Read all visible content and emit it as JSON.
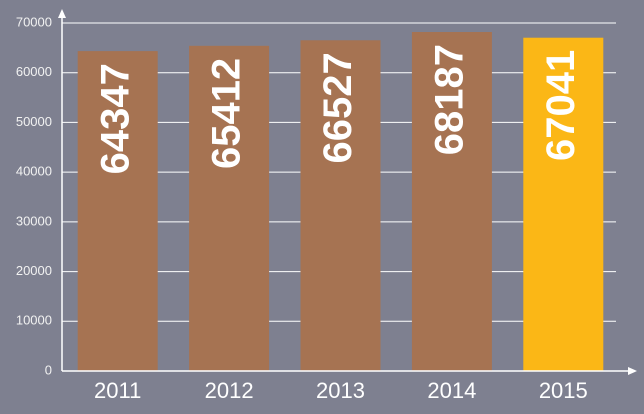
{
  "chart_data": {
    "type": "bar",
    "categories": [
      "2011",
      "2012",
      "2013",
      "2014",
      "2015"
    ],
    "values": [
      64347,
      65412,
      66527,
      68187,
      67041
    ],
    "colors": [
      "#a67352",
      "#a67352",
      "#a67352",
      "#a67352",
      "#fbb716"
    ],
    "ylim": [
      0,
      70000
    ],
    "yticks": [
      0,
      10000,
      20000,
      30000,
      40000,
      50000,
      60000,
      70000
    ],
    "grid": true
  }
}
